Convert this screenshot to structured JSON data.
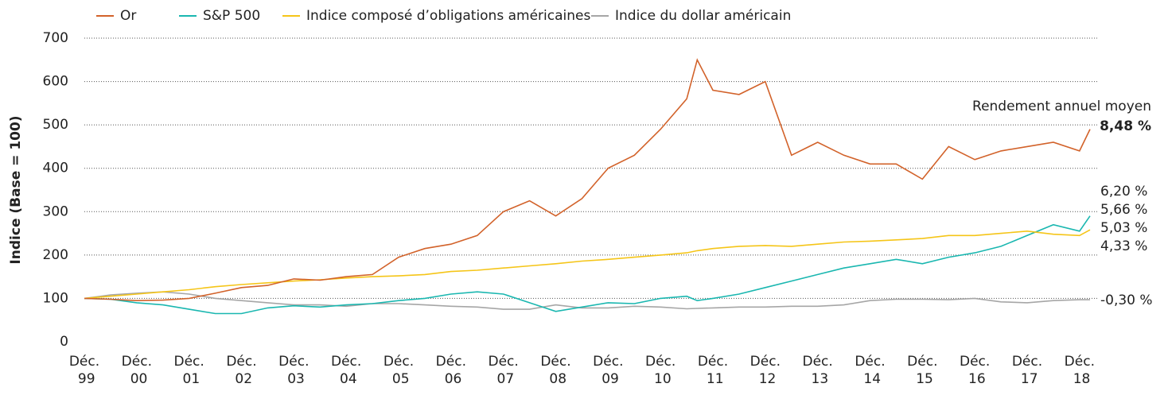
{
  "chart_data": {
    "type": "line",
    "y_label": "Indice (Base = 100)",
    "x": [
      0,
      0.5,
      1,
      1.5,
      2,
      2.5,
      3,
      3.5,
      4,
      4.5,
      5,
      5.5,
      6,
      6.5,
      7,
      7.5,
      8,
      8.5,
      9,
      9.5,
      10,
      10.5,
      11,
      11.5,
      11.7,
      12,
      12.5,
      13,
      13.5,
      14,
      14.5,
      15,
      15.5,
      16,
      16.5,
      17,
      17.5,
      18,
      18.5,
      19,
      19.2
    ],
    "series": [
      {
        "name": "Or",
        "color": "#d2622a",
        "values": [
          100,
          98,
          95,
          96,
          100,
          112,
          125,
          130,
          145,
          142,
          150,
          155,
          195,
          215,
          225,
          245,
          300,
          325,
          290,
          330,
          400,
          430,
          490,
          560,
          650,
          580,
          570,
          600,
          430,
          460,
          430,
          410,
          410,
          375,
          450,
          420,
          440,
          450,
          460,
          440,
          490
        ]
      },
      {
        "name": "S&P 500",
        "color": "#1ab7b0",
        "values": [
          100,
          98,
          90,
          85,
          75,
          65,
          65,
          78,
          83,
          80,
          85,
          88,
          95,
          100,
          110,
          115,
          110,
          90,
          70,
          80,
          90,
          88,
          100,
          105,
          95,
          100,
          110,
          125,
          140,
          155,
          170,
          180,
          190,
          180,
          195,
          205,
          220,
          245,
          270,
          255,
          290
        ]
      },
      {
        "name": "Indice composé d’obligations américaines",
        "color": "#f5c518",
        "values": [
          100,
          105,
          110,
          115,
          120,
          127,
          132,
          136,
          140,
          143,
          147,
          150,
          152,
          155,
          162,
          165,
          170,
          175,
          180,
          186,
          190,
          195,
          200,
          205,
          210,
          215,
          220,
          222,
          220,
          225,
          230,
          232,
          235,
          238,
          245,
          245,
          250,
          255,
          248,
          245,
          258
        ]
      },
      {
        "name": "Indice du dollar américain",
        "color": "#a6a6a6",
        "values": [
          100,
          108,
          112,
          115,
          110,
          100,
          95,
          90,
          85,
          85,
          82,
          88,
          88,
          85,
          82,
          80,
          75,
          75,
          85,
          78,
          78,
          82,
          80,
          76,
          77,
          78,
          80,
          80,
          82,
          82,
          85,
          95,
          98,
          98,
          97,
          100,
          92,
          90,
          95,
          97,
          97
        ]
      }
    ],
    "xlim": [
      0,
      19.2
    ],
    "xticks": [
      {
        "value": 0,
        "label": "Déc. 99"
      },
      {
        "value": 1,
        "label": "Déc. 00"
      },
      {
        "value": 2,
        "label": "Déc. 01"
      },
      {
        "value": 3,
        "label": "Déc. 02"
      },
      {
        "value": 4,
        "label": "Déc. 03"
      },
      {
        "value": 5,
        "label": "Déc. 04"
      },
      {
        "value": 6,
        "label": "Déc. 05"
      },
      {
        "value": 7,
        "label": "Déc. 06"
      },
      {
        "value": 8,
        "label": "Déc. 07"
      },
      {
        "value": 9,
        "label": "Déc. 08"
      },
      {
        "value": 10,
        "label": "Déc. 09"
      },
      {
        "value": 11,
        "label": "Déc. 10"
      },
      {
        "value": 12,
        "label": "Déc. 11"
      },
      {
        "value": 13,
        "label": "Déc. 12"
      },
      {
        "value": 14,
        "label": "Déc. 13"
      },
      {
        "value": 15,
        "label": "Déc. 14"
      },
      {
        "value": 16,
        "label": "Déc. 15"
      },
      {
        "value": 17,
        "label": "Déc. 16"
      },
      {
        "value": 18,
        "label": "Déc. 17"
      },
      {
        "value": 19,
        "label": "Déc. 18"
      }
    ],
    "ylim": [
      0,
      700
    ],
    "yticks": [
      0,
      100,
      200,
      300,
      400,
      500,
      600,
      700
    ],
    "grid": true,
    "legend": "top",
    "annotations": [
      "Rendement annuel moyen",
      "8,48 %",
      "6,20 %",
      "5,66 %",
      "5,03 %",
      "4,33 %",
      "-0,30 %"
    ]
  }
}
